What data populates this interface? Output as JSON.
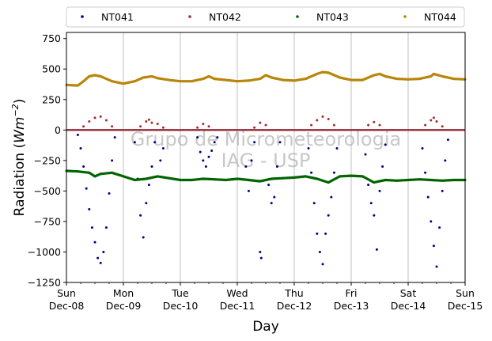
{
  "chart_data": {
    "type": "scatter",
    "xlabel": "Day",
    "ylabel_prefix": "Radiation (",
    "ylabel_unit": "Wm",
    "ylabel_exp": "−2",
    "ylabel_suffix": ")",
    "ylim": [
      -1250,
      800
    ],
    "yticks": [
      -1250,
      -1000,
      -750,
      -500,
      -250,
      0,
      250,
      500,
      750
    ],
    "ytick_labels": [
      "−1250",
      "−1000",
      "−750",
      "−500",
      "−250",
      "0",
      "250",
      "500",
      "750"
    ],
    "xlim": [
      0,
      7
    ],
    "xticks": [
      {
        "day": 0,
        "line1": "Sun",
        "line2": "Dec-08"
      },
      {
        "day": 1,
        "line1": "Mon",
        "line2": "Dec-09"
      },
      {
        "day": 2,
        "line1": "Tue",
        "line2": "Dec-10"
      },
      {
        "day": 3,
        "line1": "Wed",
        "line2": "Dec-11"
      },
      {
        "day": 4,
        "line1": "Thu",
        "line2": "Dec-12"
      },
      {
        "day": 5,
        "line1": "Fri",
        "line2": "Dec-13"
      },
      {
        "day": 6,
        "line1": "Sat",
        "line2": "Dec-14"
      },
      {
        "day": 7,
        "line1": "Sun",
        "line2": "Dec-15"
      }
    ],
    "grid": "vertical",
    "zero_line": true,
    "legend_position": "top",
    "watermark": [
      "Grupo de Micrometeorologia",
      "IAG - USP"
    ],
    "series": [
      {
        "name": "NT041",
        "color": "#00008b",
        "baseline": 0,
        "points": [
          [
            0.2,
            -40
          ],
          [
            0.25,
            -150
          ],
          [
            0.3,
            -300
          ],
          [
            0.35,
            -480
          ],
          [
            0.4,
            -650
          ],
          [
            0.45,
            -800
          ],
          [
            0.5,
            -920
          ],
          [
            0.55,
            -1050
          ],
          [
            0.6,
            -1090
          ],
          [
            0.65,
            -1000
          ],
          [
            0.7,
            -800
          ],
          [
            0.75,
            -520
          ],
          [
            0.8,
            -250
          ],
          [
            0.85,
            -60
          ],
          [
            1.2,
            -100
          ],
          [
            1.25,
            -400
          ],
          [
            1.3,
            -700
          ],
          [
            1.35,
            -880
          ],
          [
            1.4,
            -600
          ],
          [
            1.45,
            -450
          ],
          [
            1.5,
            -300
          ],
          [
            1.55,
            -100
          ],
          [
            1.65,
            -250
          ],
          [
            1.7,
            -150
          ],
          [
            2.3,
            -60
          ],
          [
            2.35,
            -180
          ],
          [
            2.4,
            -250
          ],
          [
            2.45,
            -300
          ],
          [
            2.5,
            -220
          ],
          [
            2.55,
            -170
          ],
          [
            2.6,
            -100
          ],
          [
            2.65,
            -60
          ],
          [
            3.15,
            -300
          ],
          [
            3.2,
            -500
          ],
          [
            3.25,
            -250
          ],
          [
            3.3,
            -100
          ],
          [
            3.4,
            -1000
          ],
          [
            3.42,
            -1050
          ],
          [
            3.55,
            -450
          ],
          [
            3.6,
            -600
          ],
          [
            3.65,
            -550
          ],
          [
            3.7,
            -300
          ],
          [
            3.75,
            -100
          ],
          [
            4.25,
            -150
          ],
          [
            4.3,
            -350
          ],
          [
            4.35,
            -600
          ],
          [
            4.4,
            -850
          ],
          [
            4.45,
            -1000
          ],
          [
            4.5,
            -1100
          ],
          [
            4.55,
            -850
          ],
          [
            4.6,
            -700
          ],
          [
            4.65,
            -550
          ],
          [
            4.7,
            -350
          ],
          [
            4.75,
            -150
          ],
          [
            5.25,
            -200
          ],
          [
            5.3,
            -450
          ],
          [
            5.35,
            -600
          ],
          [
            5.4,
            -700
          ],
          [
            5.45,
            -980
          ],
          [
            5.5,
            -500
          ],
          [
            5.55,
            -300
          ],
          [
            5.6,
            -120
          ],
          [
            6.25,
            -150
          ],
          [
            6.3,
            -350
          ],
          [
            6.35,
            -550
          ],
          [
            6.4,
            -750
          ],
          [
            6.45,
            -950
          ],
          [
            6.5,
            -1120
          ],
          [
            6.55,
            -800
          ],
          [
            6.6,
            -500
          ],
          [
            6.65,
            -250
          ],
          [
            6.7,
            -80
          ]
        ]
      },
      {
        "name": "NT042",
        "color": "#a52a2a",
        "baseline": 0,
        "points": [
          [
            0.3,
            30
          ],
          [
            0.4,
            70
          ],
          [
            0.5,
            100
          ],
          [
            0.6,
            110
          ],
          [
            0.7,
            80
          ],
          [
            0.8,
            30
          ],
          [
            1.3,
            30
          ],
          [
            1.4,
            70
          ],
          [
            1.45,
            85
          ],
          [
            1.5,
            60
          ],
          [
            1.6,
            50
          ],
          [
            1.7,
            20
          ],
          [
            2.3,
            20
          ],
          [
            2.4,
            50
          ],
          [
            2.5,
            30
          ],
          [
            3.3,
            20
          ],
          [
            3.4,
            60
          ],
          [
            3.5,
            40
          ],
          [
            4.3,
            40
          ],
          [
            4.4,
            80
          ],
          [
            4.5,
            110
          ],
          [
            4.6,
            90
          ],
          [
            4.7,
            40
          ],
          [
            5.3,
            40
          ],
          [
            5.4,
            65
          ],
          [
            5.5,
            40
          ],
          [
            6.3,
            40
          ],
          [
            6.4,
            80
          ],
          [
            6.45,
            100
          ],
          [
            6.5,
            70
          ],
          [
            6.6,
            30
          ]
        ]
      },
      {
        "name": "NT043",
        "color": "#006400",
        "points": [
          [
            0,
            -335
          ],
          [
            0.2,
            -340
          ],
          [
            0.4,
            -350
          ],
          [
            0.5,
            -380
          ],
          [
            0.6,
            -360
          ],
          [
            0.8,
            -350
          ],
          [
            1.0,
            -380
          ],
          [
            1.2,
            -410
          ],
          [
            1.4,
            -400
          ],
          [
            1.6,
            -380
          ],
          [
            1.8,
            -395
          ],
          [
            2.0,
            -410
          ],
          [
            2.2,
            -410
          ],
          [
            2.4,
            -400
          ],
          [
            2.6,
            -405
          ],
          [
            2.8,
            -410
          ],
          [
            3.0,
            -400
          ],
          [
            3.2,
            -410
          ],
          [
            3.4,
            -420
          ],
          [
            3.6,
            -400
          ],
          [
            3.8,
            -395
          ],
          [
            4.0,
            -390
          ],
          [
            4.2,
            -380
          ],
          [
            4.4,
            -400
          ],
          [
            4.6,
            -430
          ],
          [
            4.8,
            -380
          ],
          [
            5.0,
            -375
          ],
          [
            5.2,
            -380
          ],
          [
            5.4,
            -430
          ],
          [
            5.6,
            -410
          ],
          [
            5.8,
            -415
          ],
          [
            6.0,
            -410
          ],
          [
            6.2,
            -405
          ],
          [
            6.4,
            -410
          ],
          [
            6.6,
            -415
          ],
          [
            6.8,
            -410
          ],
          [
            7.0,
            -410
          ]
        ]
      },
      {
        "name": "NT044",
        "color": "#b8860b",
        "points": [
          [
            0,
            370
          ],
          [
            0.2,
            365
          ],
          [
            0.3,
            400
          ],
          [
            0.4,
            440
          ],
          [
            0.5,
            450
          ],
          [
            0.6,
            440
          ],
          [
            0.8,
            400
          ],
          [
            1.0,
            380
          ],
          [
            1.2,
            400
          ],
          [
            1.35,
            430
          ],
          [
            1.5,
            440
          ],
          [
            1.6,
            425
          ],
          [
            1.8,
            410
          ],
          [
            2.0,
            400
          ],
          [
            2.2,
            400
          ],
          [
            2.4,
            420
          ],
          [
            2.5,
            440
          ],
          [
            2.6,
            420
          ],
          [
            2.8,
            410
          ],
          [
            3.0,
            400
          ],
          [
            3.2,
            405
          ],
          [
            3.4,
            420
          ],
          [
            3.5,
            450
          ],
          [
            3.6,
            430
          ],
          [
            3.8,
            410
          ],
          [
            4.0,
            405
          ],
          [
            4.2,
            420
          ],
          [
            4.4,
            460
          ],
          [
            4.5,
            475
          ],
          [
            4.6,
            470
          ],
          [
            4.8,
            430
          ],
          [
            5.0,
            410
          ],
          [
            5.2,
            410
          ],
          [
            5.4,
            450
          ],
          [
            5.5,
            460
          ],
          [
            5.6,
            440
          ],
          [
            5.8,
            420
          ],
          [
            6.0,
            415
          ],
          [
            6.2,
            420
          ],
          [
            6.4,
            440
          ],
          [
            6.45,
            460
          ],
          [
            6.6,
            440
          ],
          [
            6.8,
            420
          ],
          [
            7.0,
            415
          ]
        ]
      }
    ]
  }
}
